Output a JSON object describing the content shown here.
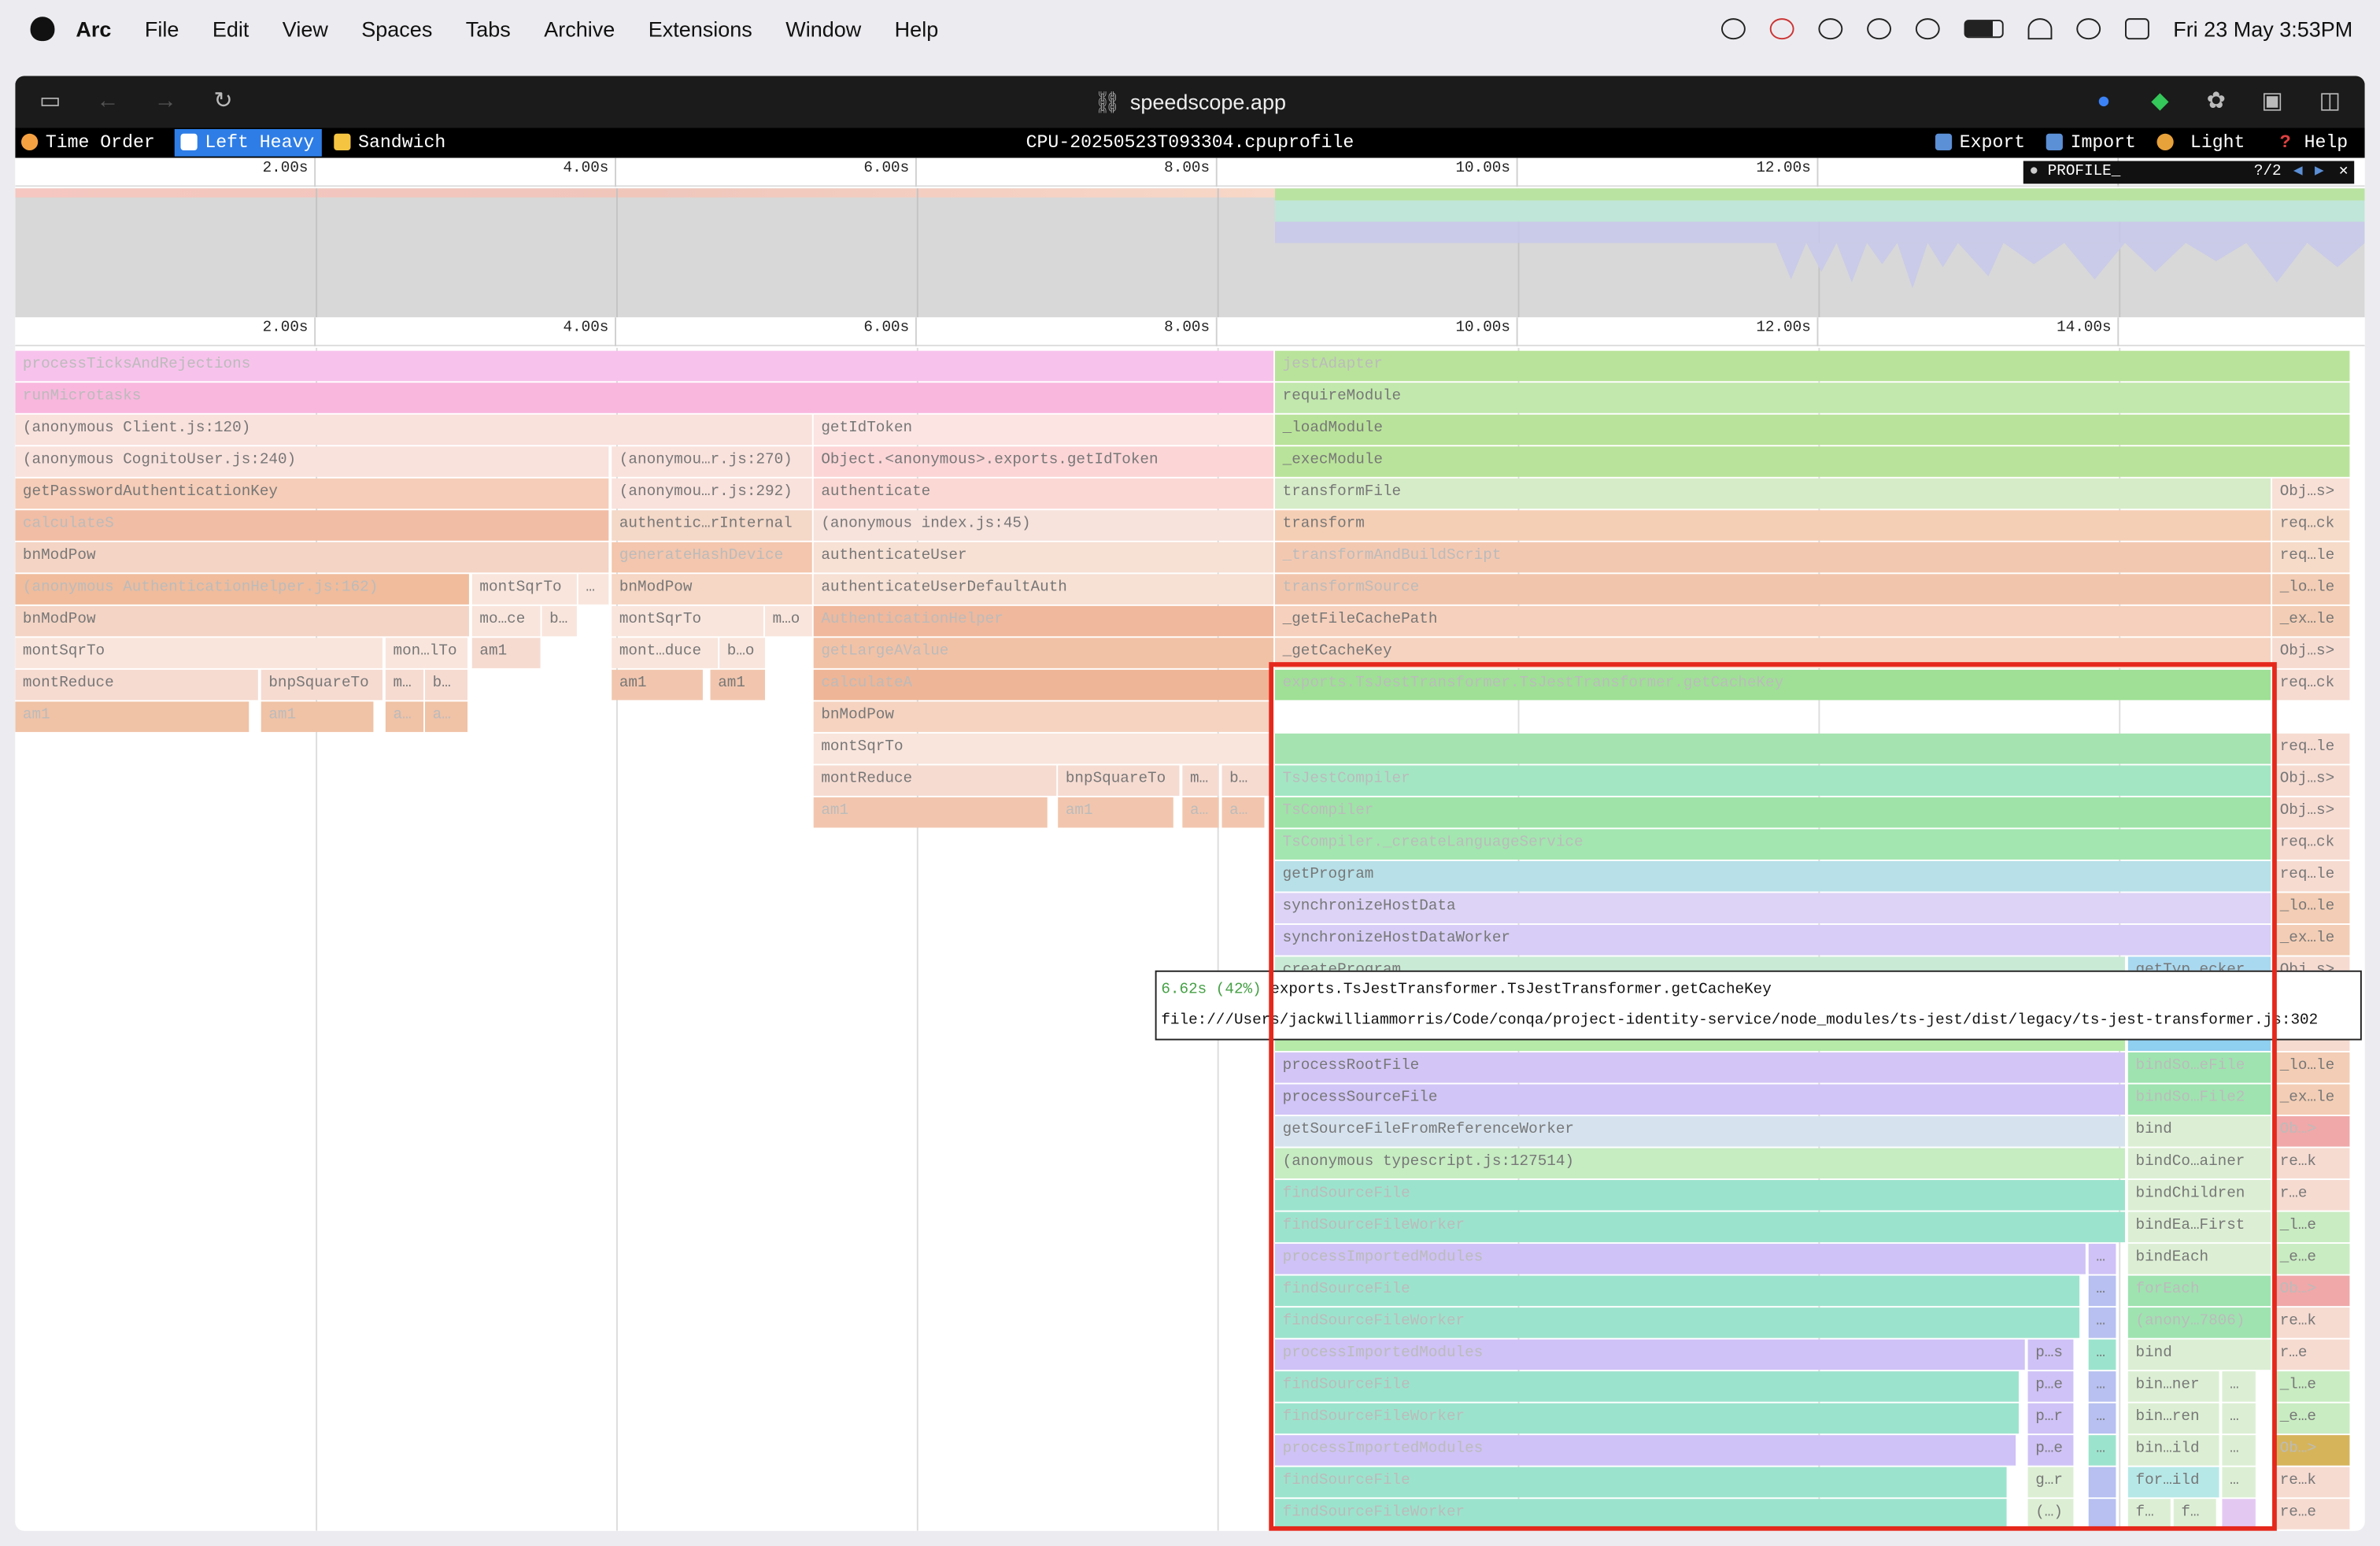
{
  "menubar": {
    "items": [
      "Arc",
      "File",
      "Edit",
      "View",
      "Spaces",
      "Tabs",
      "Archive",
      "Extensions",
      "Window",
      "Help"
    ],
    "clock": "Fri 23 May  3:53PM"
  },
  "browser": {
    "url": "speedscope.app",
    "icons": [
      "sidebar-toggle-icon",
      "back-arrow-icon",
      "forward-arrow-icon",
      "reload-icon",
      "onepassword-icon",
      "extension-icon",
      "chatgpt-icon",
      "capture-icon",
      "split-view-icon"
    ]
  },
  "speedscope": {
    "views": [
      {
        "label": "Time Order",
        "glyph": "clock-icon",
        "color": "#f5a142"
      },
      {
        "label": "Left Heavy",
        "glyph": "left-heavy-icon",
        "color": "#ffffff"
      },
      {
        "label": "Sandwich",
        "glyph": "sandwich-icon",
        "color": "#f5c542"
      }
    ],
    "active_view": "Left Heavy",
    "profile_title": "CPU-20250523T093304.cpuprofile",
    "actions": [
      {
        "label": "Export",
        "glyph": "export-icon",
        "color": "#5b8fd6"
      },
      {
        "label": "Import",
        "glyph": "import-icon",
        "color": "#5b8fd6"
      },
      {
        "label": "Light",
        "glyph": "theme-icon",
        "color": "#e8a23a"
      },
      {
        "label": "Help",
        "glyph": "help-icon",
        "color": "#e04040"
      }
    ],
    "profile_selector": {
      "label": "PROFILE_",
      "count": "?/2"
    },
    "ruler_top": [
      "2.00s",
      "4.00s",
      "6.00s",
      "8.00s",
      "10.00s",
      "12.00s",
      ""
    ],
    "ruler_flame": [
      "2.00s",
      "4.00s",
      "6.00s",
      "8.00s",
      "10.00s",
      "12.00s",
      "14.00s"
    ],
    "tooltip": {
      "time": "6.62s (42%)",
      "name": "exports.TsJestTransformer.TsJestTransformer.getCacheKey",
      "file": "file:///Users/jackwilliammorris/Code/conqa/project-identity-service/node_modules/ts-jest/dist/legacy/ts-jest-transformer.js:302"
    }
  }
}
